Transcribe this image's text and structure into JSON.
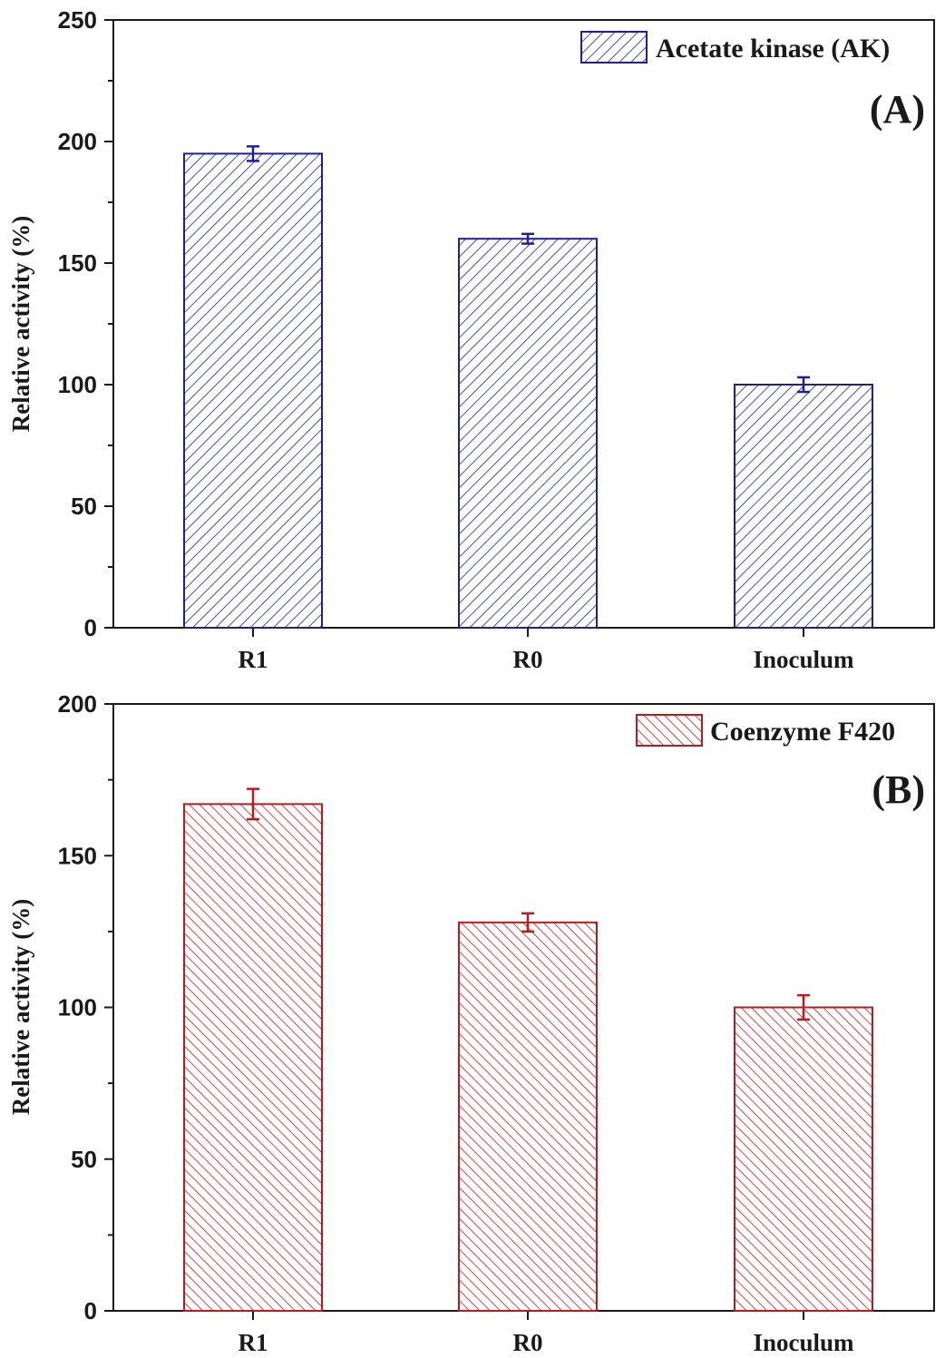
{
  "chart_data": [
    {
      "type": "bar",
      "panel_label": "(A)",
      "title": "",
      "xlabel": "",
      "ylabel": "Relative activity (%)",
      "categories": [
        "R1",
        "R0",
        "Inoculum"
      ],
      "series": [
        {
          "name": "Acetate kinase (AK)",
          "values": [
            195,
            160,
            100
          ],
          "errors": [
            3,
            2,
            3
          ],
          "color": "#1f1f99"
        }
      ],
      "ylim": [
        0,
        250
      ],
      "yticks": [
        0,
        50,
        100,
        150,
        200,
        250
      ],
      "yticks_labels": [
        "0",
        "50",
        "100",
        "150",
        "200",
        "250"
      ],
      "grid": false,
      "legend_position": "top-right"
    },
    {
      "type": "bar",
      "panel_label": "(B)",
      "title": "",
      "xlabel": "",
      "ylabel": "Relative activity (%)",
      "categories": [
        "R1",
        "R0",
        "Inoculum"
      ],
      "series": [
        {
          "name": "Coenzyme F420",
          "values": [
            167,
            128,
            100
          ],
          "errors": [
            5,
            3,
            4
          ],
          "color": "#c0191c"
        }
      ],
      "ylim": [
        0,
        200
      ],
      "yticks": [
        0,
        50,
        100,
        150,
        200
      ],
      "yticks_labels": [
        "0",
        "50",
        "100",
        "150",
        "200"
      ],
      "grid": false,
      "legend_position": "top-right"
    }
  ]
}
